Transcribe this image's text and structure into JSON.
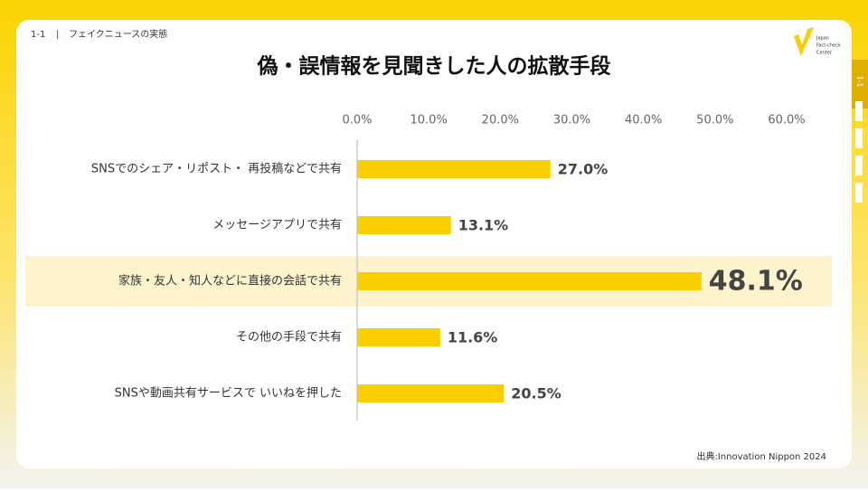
{
  "header": {
    "section": "1-1",
    "topic": "フェイクニュースの実態",
    "logo": [
      "Japan",
      "Fact-check",
      "Center"
    ],
    "tab": "1-1"
  },
  "source": "出典:Innovation Nippon 2024",
  "chart_data": {
    "type": "bar",
    "orientation": "horizontal",
    "title": "偽・誤情報を見聞きした人の拡散手段",
    "categories": [
      "SNSでのシェア・リポスト・ 再投稿などで共有",
      "メッセージアプリで共有",
      "家族・友人・知人などに直接の会話で共有",
      "その他の手段で共有",
      "SNSや動画共有サービスで いいねを押した"
    ],
    "values": [
      27.0,
      13.1,
      48.1,
      11.6,
      20.5
    ],
    "value_labels": [
      "27.0%",
      "13.1%",
      "48.1%",
      "11.6%",
      "20.5%"
    ],
    "color": "#f9cf00",
    "highlight": 2,
    "xlim": [
      0,
      60
    ],
    "xticks": [
      {
        "value": 0,
        "label": "0.0%"
      },
      {
        "value": 10,
        "label": "10.0%"
      },
      {
        "value": 20,
        "label": "20.0%"
      },
      {
        "value": 30,
        "label": "30.0%"
      },
      {
        "value": 40,
        "label": "40.0%"
      },
      {
        "value": 50,
        "label": "50.0%"
      },
      {
        "value": 60,
        "label": "60.0%"
      }
    ]
  }
}
